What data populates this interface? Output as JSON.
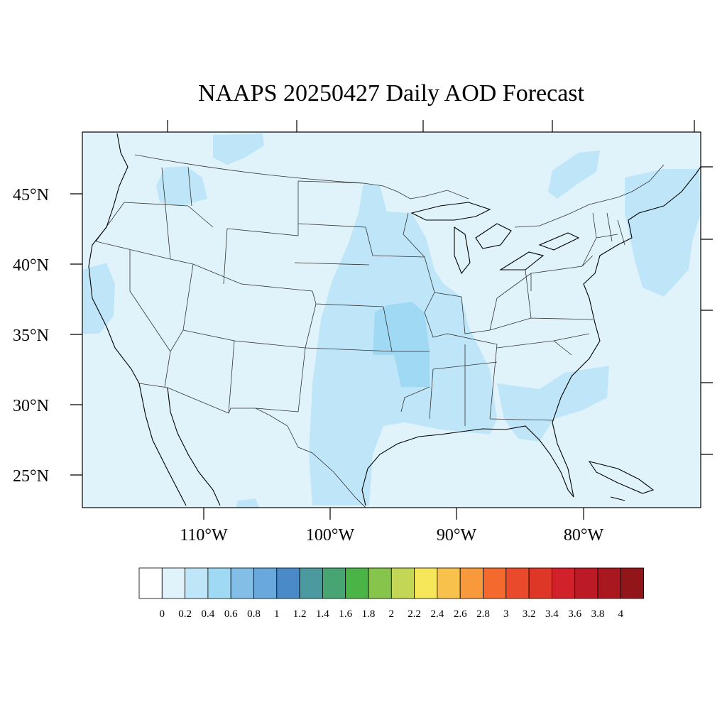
{
  "title": "NAAPS 20250427 Daily AOD Forecast",
  "map": {
    "ocean_color": "#e0f3fb",
    "lat_labels": [
      "45°N",
      "40°N",
      "35°N",
      "30°N",
      "25°N"
    ],
    "lon_labels": [
      "110°W",
      "100°W",
      "90°W",
      "80°W"
    ]
  },
  "colorbar": {
    "colors": [
      "#ffffff",
      "#e0f3fb",
      "#bfe6f8",
      "#9fd9f4",
      "#82bee6",
      "#68a8dc",
      "#4a8ac8",
      "#4a9aa0",
      "#46a572",
      "#4bb446",
      "#86c44c",
      "#c4d656",
      "#f6e75a",
      "#f8c14c",
      "#f89a3c",
      "#f46a2e",
      "#e94a2b",
      "#de3728",
      "#d1222b",
      "#bc1a27",
      "#a8181e",
      "#921619"
    ],
    "labels": [
      "0",
      "0.2",
      "0.4",
      "0.6",
      "0.8",
      "1",
      "1.2",
      "1.4",
      "1.6",
      "1.8",
      "2",
      "2.2",
      "2.4",
      "2.6",
      "2.8",
      "3",
      "3.2",
      "3.4",
      "3.6",
      "3.8",
      "4"
    ]
  }
}
